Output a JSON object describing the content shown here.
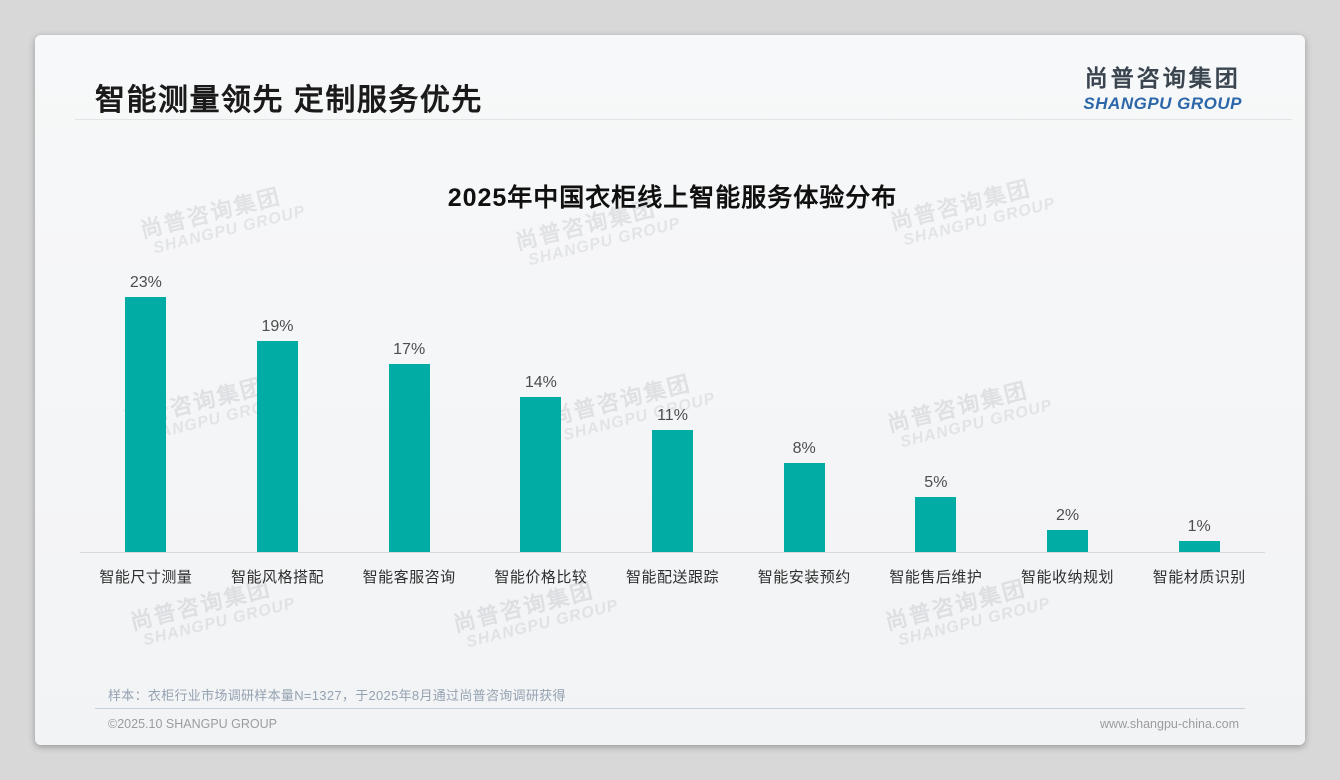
{
  "page": {
    "title": "智能测量领先 定制服务优先"
  },
  "logo": {
    "cn": "尚普咨询集团",
    "en": "SHANGPU GROUP"
  },
  "watermark": {
    "cn": "尚普咨询集团",
    "en": "SHANGPU GROUP"
  },
  "chart_data": {
    "type": "bar",
    "title": "2025年中国衣柜线上智能服务体验分布",
    "categories": [
      "智能尺寸测量",
      "智能风格搭配",
      "智能客服咨询",
      "智能价格比较",
      "智能配送跟踪",
      "智能安装预约",
      "智能售后维护",
      "智能收纳规划",
      "智能材质识别"
    ],
    "values": [
      23,
      19,
      17,
      14,
      11,
      8,
      5,
      2,
      1
    ],
    "value_labels": [
      "23%",
      "19%",
      "17%",
      "14%",
      "11%",
      "8%",
      "5%",
      "2%",
      "1%"
    ],
    "unit": "%",
    "bar_color": "#01aca4",
    "ylim": [
      0,
      25
    ],
    "grid": false,
    "legend": false,
    "xlabel": "",
    "ylabel": ""
  },
  "footnote": "样本：衣柜行业市场调研样本量N=1327，于2025年8月通过尚普咨询调研获得",
  "footer": {
    "left": "©2025.10 SHANGPU GROUP",
    "right": "www.shangpu-china.com"
  },
  "colors": {
    "bar": "#01aca4",
    "accent_blue": "#2c67a9",
    "page_bg": "#d8d8d8",
    "card_bg": "#f4f5f6"
  }
}
